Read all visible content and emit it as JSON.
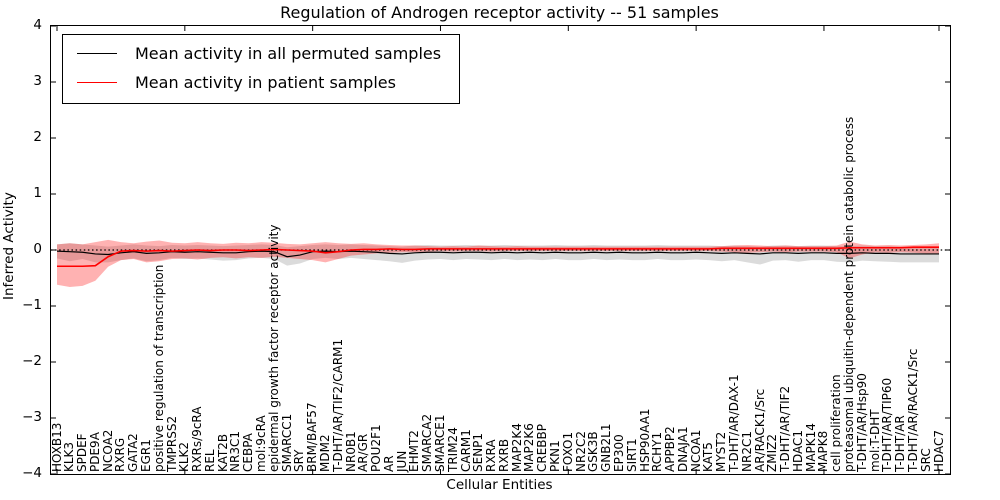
{
  "chart_data": {
    "type": "line",
    "title": "Regulation of Androgen receptor activity -- 51 samples",
    "xlabel": "Cellular Entities",
    "ylabel": "Inferred Activity",
    "ylim": [
      -4,
      4
    ],
    "yticks": [
      4,
      3,
      2,
      1,
      0,
      -1,
      -2,
      -3,
      -4
    ],
    "grid": false,
    "legend_position": "upper left",
    "zero_line": {
      "style": "dotted",
      "color": "#000000",
      "y": 0
    },
    "categories": [
      "HOXB13",
      "KLK3",
      "SPDEF",
      "PDE9A",
      "NCOA2",
      "RXRG",
      "GATA2",
      "EGR1",
      "positive regulation of transcription",
      "TMPRSS2",
      "KLK2",
      "RXRs/9cRA",
      "REL",
      "KAT2B",
      "NR3C1",
      "CEBPA",
      "mol:9cRA",
      "epidermal growth factor receptor activity",
      "SMARCC1",
      "SRY",
      "BRM/BAF57",
      "MDM2",
      "T-DHT/AR/TIF2/CARM1",
      "NR0B1",
      "AR/GR",
      "POU2F1",
      "AR",
      "JUN",
      "EHMT2",
      "SMARCA2",
      "SMARCE1",
      "TRIM24",
      "CARM1",
      "SENP1",
      "RXRA",
      "RXRB",
      "MAP2K4",
      "MAP2K6",
      "CREBBP",
      "PKN1",
      "FOXO1",
      "NR2C2",
      "GSK3B",
      "GNB2L1",
      "EP300",
      "SIRT1",
      "HSP90AA1",
      "RCHY1",
      "APPBP2",
      "DNAJA1",
      "NCOA1",
      "KAT5",
      "MYST2",
      "T-DHT/AR/DAX-1",
      "NR2C1",
      "AR/RACK1/Src",
      "ZMIZ2",
      "T-DHT/AR/TIF2",
      "HDAC1",
      "MAPK14",
      "MAPK8",
      "cell proliferation",
      "proteasomal ubiquitin-dependent protein catabolic process",
      "T-DHT/AR/Hsp90",
      "mol:T-DHT",
      "T-DHT/AR/TIP60",
      "T-DHT/AR",
      "T-DHT/AR/RACK1/Src",
      "SRC",
      "HDAC7"
    ],
    "series": [
      {
        "name": "Mean activity in all permuted samples",
        "color": "#000000",
        "band_color": "#aaaaaa",
        "band_opacity": 0.42,
        "values": [
          -0.02,
          -0.03,
          -0.04,
          -0.07,
          -0.08,
          -0.05,
          -0.03,
          -0.06,
          -0.05,
          -0.03,
          -0.04,
          -0.03,
          -0.04,
          -0.05,
          -0.05,
          -0.03,
          -0.02,
          -0.03,
          -0.12,
          -0.09,
          -0.03,
          -0.02,
          -0.03,
          -0.02,
          -0.03,
          -0.04,
          -0.06,
          -0.07,
          -0.05,
          -0.04,
          -0.04,
          -0.05,
          -0.04,
          -0.04,
          -0.05,
          -0.04,
          -0.05,
          -0.04,
          -0.05,
          -0.04,
          -0.05,
          -0.05,
          -0.04,
          -0.05,
          -0.04,
          -0.05,
          -0.05,
          -0.04,
          -0.05,
          -0.05,
          -0.04,
          -0.05,
          -0.06,
          -0.05,
          -0.06,
          -0.07,
          -0.05,
          -0.05,
          -0.06,
          -0.05,
          -0.05,
          -0.06,
          -0.06,
          -0.05,
          -0.06,
          -0.06,
          -0.07,
          -0.07,
          -0.07,
          -0.07
        ],
        "band_upper": [
          0.1,
          0.12,
          0.1,
          0.08,
          0.06,
          0.08,
          0.1,
          0.08,
          0.07,
          0.09,
          0.08,
          0.09,
          0.08,
          0.07,
          0.08,
          0.09,
          0.1,
          0.09,
          0.05,
          0.07,
          0.09,
          0.1,
          0.09,
          0.1,
          0.09,
          0.08,
          0.07,
          0.06,
          0.08,
          0.09,
          0.08,
          0.08,
          0.09,
          0.08,
          0.08,
          0.09,
          0.08,
          0.08,
          0.08,
          0.09,
          0.08,
          0.08,
          0.09,
          0.08,
          0.08,
          0.08,
          0.08,
          0.09,
          0.08,
          0.08,
          0.08,
          0.08,
          0.07,
          0.08,
          0.07,
          0.06,
          0.08,
          0.08,
          0.07,
          0.08,
          0.08,
          0.07,
          0.07,
          0.08,
          0.07,
          0.07,
          0.06,
          0.06,
          0.06,
          0.06
        ],
        "band_lower": [
          -0.15,
          -0.2,
          -0.16,
          -0.22,
          -0.22,
          -0.18,
          -0.15,
          -0.2,
          -0.18,
          -0.14,
          -0.16,
          -0.15,
          -0.17,
          -0.19,
          -0.18,
          -0.15,
          -0.14,
          -0.16,
          -0.28,
          -0.24,
          -0.16,
          -0.14,
          -0.16,
          -0.14,
          -0.16,
          -0.18,
          -0.2,
          -0.23,
          -0.19,
          -0.17,
          -0.16,
          -0.18,
          -0.16,
          -0.17,
          -0.18,
          -0.16,
          -0.18,
          -0.17,
          -0.18,
          -0.16,
          -0.18,
          -0.18,
          -0.16,
          -0.18,
          -0.17,
          -0.18,
          -0.18,
          -0.16,
          -0.18,
          -0.18,
          -0.17,
          -0.18,
          -0.2,
          -0.18,
          -0.22,
          -0.26,
          -0.19,
          -0.18,
          -0.21,
          -0.18,
          -0.18,
          -0.21,
          -0.22,
          -0.19,
          -0.2,
          -0.21,
          -0.22,
          -0.22,
          -0.22,
          -0.22
        ]
      },
      {
        "name": "Mean activity in patient samples",
        "color": "#ff0000",
        "band_color": "#ff0000",
        "band_opacity": 0.3,
        "values": [
          -0.29,
          -0.29,
          -0.29,
          -0.28,
          -0.12,
          -0.02,
          -0.01,
          -0.02,
          -0.01,
          -0.02,
          -0.01,
          0,
          -0.01,
          0,
          0,
          -0.01,
          0,
          0.01,
          0,
          -0.01,
          -0.02,
          -0.05,
          -0.03,
          0,
          0.01,
          0.01,
          0.02,
          0.01,
          0.01,
          0.02,
          0.02,
          0.02,
          0.02,
          0.02,
          0.02,
          0.02,
          0.02,
          0.02,
          0.02,
          0.02,
          0.02,
          0.02,
          0.02,
          0.02,
          0.02,
          0.02,
          0.02,
          0.02,
          0.02,
          0.02,
          0.02,
          0.02,
          0.03,
          0.03,
          0.03,
          0.03,
          0.03,
          0.03,
          0.03,
          0.03,
          0.03,
          0.03,
          0.04,
          0.04,
          0.04,
          0.04,
          0.04,
          0.05,
          0.05,
          0.05
        ],
        "band_upper": [
          0.1,
          0.12,
          0.1,
          0.14,
          0.18,
          0.14,
          0.12,
          0.15,
          0.17,
          0.13,
          0.12,
          0.14,
          0.12,
          0.11,
          0.13,
          0.12,
          0.14,
          0.13,
          0.11,
          0.1,
          0.12,
          0.14,
          0.12,
          0.11,
          0.12,
          0.1,
          0.09,
          0.08,
          0.08,
          0.07,
          0.06,
          0.07,
          0.06,
          0.08,
          0.07,
          0.06,
          0.07,
          0.06,
          0.06,
          0.06,
          0.06,
          0.06,
          0.06,
          0.06,
          0.06,
          0.06,
          0.06,
          0.06,
          0.06,
          0.06,
          0.06,
          0.06,
          0.07,
          0.08,
          0.09,
          0.08,
          0.07,
          0.08,
          0.07,
          0.07,
          0.07,
          0.08,
          0.15,
          0.1,
          0.08,
          0.09,
          0.08,
          0.09,
          0.1,
          0.12
        ],
        "band_lower": [
          -0.62,
          -0.66,
          -0.64,
          -0.55,
          -0.3,
          -0.18,
          -0.16,
          -0.22,
          -0.2,
          -0.16,
          -0.15,
          -0.17,
          -0.14,
          -0.13,
          -0.15,
          -0.13,
          -0.14,
          -0.12,
          -0.14,
          -0.16,
          -0.18,
          -0.22,
          -0.16,
          -0.1,
          -0.08,
          -0.06,
          -0.05,
          -0.04,
          -0.04,
          -0.03,
          -0.02,
          -0.03,
          -0.02,
          -0.02,
          -0.03,
          -0.02,
          -0.02,
          -0.02,
          -0.02,
          -0.02,
          -0.02,
          -0.02,
          -0.02,
          -0.02,
          -0.02,
          -0.02,
          -0.02,
          -0.02,
          -0.02,
          -0.02,
          -0.02,
          -0.02,
          -0.03,
          -0.04,
          -0.05,
          -0.04,
          -0.03,
          -0.04,
          -0.03,
          -0.03,
          -0.03,
          -0.04,
          -0.15,
          -0.08,
          -0.04,
          -0.05,
          -0.04,
          -0.05,
          -0.06,
          -0.06
        ]
      }
    ]
  }
}
